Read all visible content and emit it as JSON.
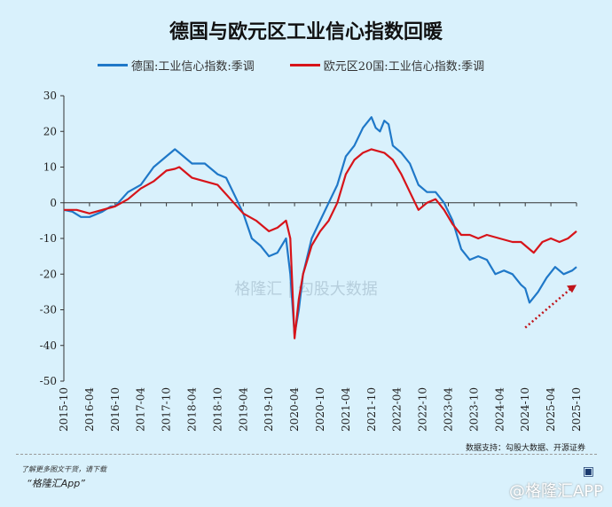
{
  "title": "德国与欧元区工业信心指数回暖",
  "source": "数据支持：勾股大数据、开源证券",
  "promo_line1": "了解更多图文干货，请下载",
  "promo_line2": "“格隆汇App”",
  "brand_logo": "格隆汇",
  "credit": "@格隆汇APP",
  "watermark": "格隆汇 | 勾股大数据",
  "chart_data": {
    "type": "line",
    "title": "德国与欧元区工业信心指数回暖",
    "ylim": [
      -50,
      30
    ],
    "yticks": [
      30,
      20,
      10,
      0,
      -10,
      -20,
      -30,
      -40,
      -50
    ],
    "xticks": [
      "2015-10",
      "2016-04",
      "2016-10",
      "2017-04",
      "2017-10",
      "2018-04",
      "2018-10",
      "2019-04",
      "2019-10",
      "2020-04",
      "2020-10",
      "2021-04",
      "2021-10",
      "2022-04",
      "2022-10",
      "2023-04",
      "2023-10",
      "2024-04",
      "2024-10",
      "2025-04",
      "2025-10"
    ],
    "legend_position": "top",
    "series": [
      {
        "name": "德国:工业信心指数:季调",
        "color": "#1f78c8",
        "x": [
          "2015-10",
          "2015-12",
          "2016-02",
          "2016-04",
          "2016-07",
          "2016-09",
          "2016-10",
          "2017-01",
          "2017-04",
          "2017-07",
          "2017-10",
          "2017-12",
          "2018-01",
          "2018-04",
          "2018-07",
          "2018-10",
          "2018-12",
          "2019-02",
          "2019-04",
          "2019-06",
          "2019-08",
          "2019-10",
          "2019-12",
          "2020-02",
          "2020-03",
          "2020-04",
          "2020-05",
          "2020-06",
          "2020-08",
          "2020-10",
          "2020-12",
          "2021-02",
          "2021-04",
          "2021-06",
          "2021-08",
          "2021-10",
          "2021-11",
          "2021-12",
          "2022-01",
          "2022-02",
          "2022-03",
          "2022-05",
          "2022-07",
          "2022-09",
          "2022-11",
          "2023-01",
          "2023-03",
          "2023-05",
          "2023-07",
          "2023-09",
          "2023-11",
          "2024-01",
          "2024-03",
          "2024-05",
          "2024-07",
          "2024-09",
          "2024-10",
          "2024-11",
          "2025-01",
          "2025-03",
          "2025-05",
          "2025-07",
          "2025-09",
          "2025-10"
        ],
        "values": [
          -2,
          -2.5,
          -4,
          -4,
          -2.5,
          -1,
          -1,
          3,
          5,
          10,
          13,
          15,
          14,
          11,
          11,
          8,
          7,
          2,
          -3,
          -10,
          -12,
          -15,
          -14,
          -10,
          -20,
          -37,
          -30,
          -20,
          -10,
          -5,
          0,
          5,
          13,
          16,
          21,
          24,
          21,
          20,
          23,
          22,
          16,
          14,
          11,
          5,
          3,
          3,
          0,
          -5,
          -13,
          -16,
          -15,
          -16,
          -20,
          -19,
          -20,
          -23,
          -24,
          -28,
          -25,
          -21,
          -18,
          -20,
          -19,
          -18
        ]
      },
      {
        "name": "欧元区20国:工业信心指数:季调",
        "color": "#d7141a",
        "x": [
          "2015-10",
          "2016-01",
          "2016-04",
          "2016-07",
          "2016-10",
          "2017-01",
          "2017-04",
          "2017-07",
          "2017-10",
          "2017-12",
          "2018-01",
          "2018-04",
          "2018-07",
          "2018-10",
          "2019-01",
          "2019-04",
          "2019-07",
          "2019-10",
          "2019-12",
          "2020-02",
          "2020-03",
          "2020-04",
          "2020-05",
          "2020-06",
          "2020-08",
          "2020-10",
          "2020-12",
          "2021-02",
          "2021-04",
          "2021-06",
          "2021-08",
          "2021-10",
          "2022-01",
          "2022-03",
          "2022-05",
          "2022-07",
          "2022-09",
          "2022-11",
          "2023-01",
          "2023-03",
          "2023-05",
          "2023-07",
          "2023-09",
          "2023-11",
          "2024-01",
          "2024-04",
          "2024-07",
          "2024-09",
          "2024-11",
          "2024-12",
          "2025-02",
          "2025-04",
          "2025-06",
          "2025-08",
          "2025-10"
        ],
        "values": [
          -2,
          -2,
          -3,
          -2,
          -1,
          1,
          4,
          6,
          9,
          9.5,
          10,
          7,
          6,
          5,
          1,
          -3,
          -5,
          -8,
          -7,
          -5,
          -10,
          -38,
          -27,
          -20,
          -12,
          -8,
          -5,
          0,
          8,
          12,
          14,
          15,
          14,
          12,
          8,
          3,
          -2,
          0,
          1,
          -2,
          -6,
          -9,
          -9,
          -10,
          -9,
          -10,
          -11,
          -11,
          -13,
          -14,
          -11,
          -10,
          -11,
          -10,
          -8
        ]
      }
    ],
    "annotation": {
      "type": "dotted-arrow",
      "from": [
        "2024-10",
        -35
      ],
      "to": [
        "2025-10",
        -23
      ],
      "color": "#c0141a"
    }
  }
}
